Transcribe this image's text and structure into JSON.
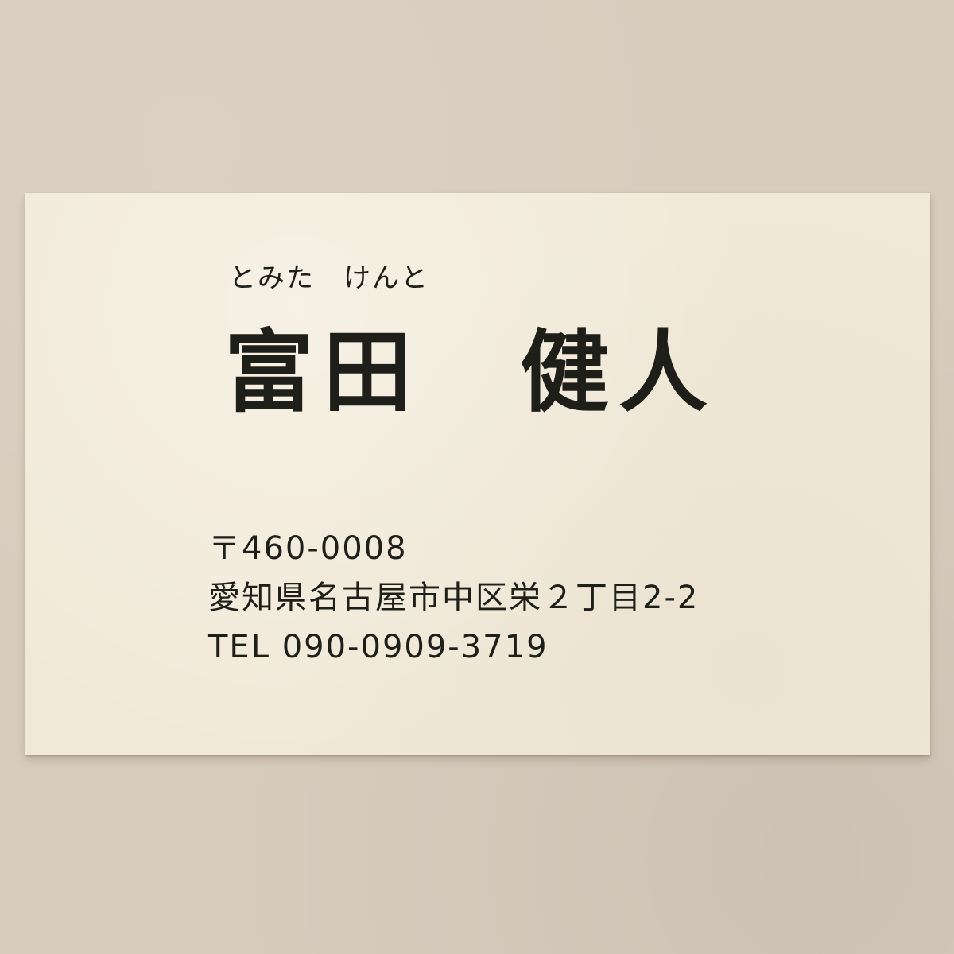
{
  "card": {
    "furigana": "とみた　けんと",
    "name": "富田　健人",
    "postal_code": "〒460-0008",
    "address": "愛知県名古屋市中区栄２丁目2-2",
    "phone": "TEL 090-0909-3719"
  },
  "colors": {
    "background": "#d8ccbd",
    "card": "#f1e9d7",
    "ink": "#1f1f1a"
  }
}
